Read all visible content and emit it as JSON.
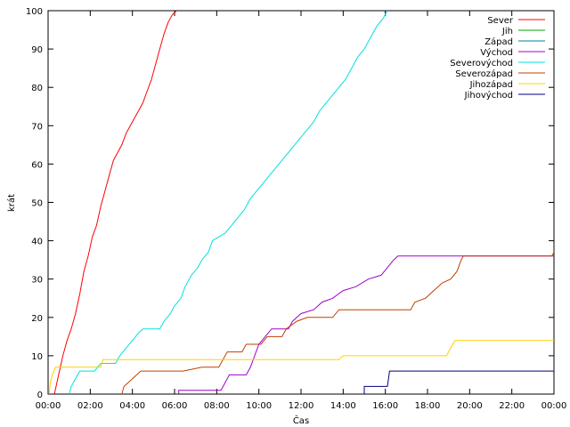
{
  "chart_data": {
    "type": "line",
    "title": "",
    "xlabel": "Čas",
    "ylabel": "krát",
    "xlim": [
      0,
      24
    ],
    "ylim": [
      0,
      100
    ],
    "x_ticks": [
      {
        "v": 0,
        "label": "00:00"
      },
      {
        "v": 2,
        "label": "02:00"
      },
      {
        "v": 4,
        "label": "04:00"
      },
      {
        "v": 6,
        "label": "06:00"
      },
      {
        "v": 8,
        "label": "08:00"
      },
      {
        "v": 10,
        "label": "10:00"
      },
      {
        "v": 12,
        "label": "12:00"
      },
      {
        "v": 14,
        "label": "14:00"
      },
      {
        "v": 16,
        "label": "16:00"
      },
      {
        "v": 18,
        "label": "18:00"
      },
      {
        "v": 20,
        "label": "20:00"
      },
      {
        "v": 22,
        "label": "22:00"
      },
      {
        "v": 24,
        "label": "00:00"
      }
    ],
    "y_ticks": [
      {
        "v": 0,
        "label": "0"
      },
      {
        "v": 10,
        "label": "10"
      },
      {
        "v": 20,
        "label": "20"
      },
      {
        "v": 30,
        "label": "30"
      },
      {
        "v": 40,
        "label": "40"
      },
      {
        "v": 50,
        "label": "50"
      },
      {
        "v": 60,
        "label": "60"
      },
      {
        "v": 70,
        "label": "70"
      },
      {
        "v": 80,
        "label": "80"
      },
      {
        "v": 90,
        "label": "90"
      },
      {
        "v": 100,
        "label": "100"
      }
    ],
    "grid": false,
    "legend_position": "top-right",
    "series": [
      {
        "name": "Sever",
        "color": "#ff0000",
        "points": [
          [
            0.3,
            0
          ],
          [
            0.5,
            5
          ],
          [
            0.7,
            10
          ],
          [
            0.9,
            14
          ],
          [
            1.1,
            17
          ],
          [
            1.3,
            21
          ],
          [
            1.5,
            26
          ],
          [
            1.7,
            32
          ],
          [
            1.9,
            36
          ],
          [
            2.1,
            41
          ],
          [
            2.3,
            44
          ],
          [
            2.5,
            49
          ],
          [
            2.7,
            53
          ],
          [
            2.9,
            57
          ],
          [
            3.1,
            61
          ],
          [
            3.3,
            63
          ],
          [
            3.5,
            65
          ],
          [
            3.7,
            68
          ],
          [
            3.9,
            70
          ],
          [
            4.1,
            72
          ],
          [
            4.3,
            74
          ],
          [
            4.5,
            76
          ],
          [
            4.7,
            79
          ],
          [
            4.9,
            82
          ],
          [
            5.1,
            86
          ],
          [
            5.3,
            90
          ],
          [
            5.5,
            94
          ],
          [
            5.7,
            97
          ],
          [
            5.9,
            99
          ],
          [
            6.1,
            100
          ]
        ]
      },
      {
        "name": "Jih",
        "color": "#00a000",
        "points": []
      },
      {
        "name": "Západ",
        "color": "#0080a0",
        "points": []
      },
      {
        "name": "Východ",
        "color": "#a000d0",
        "points": [
          [
            6.2,
            0
          ],
          [
            6.2,
            1
          ],
          [
            8.2,
            1
          ],
          [
            8.4,
            3
          ],
          [
            8.6,
            5
          ],
          [
            9.4,
            5
          ],
          [
            9.6,
            7
          ],
          [
            9.8,
            10
          ],
          [
            10.0,
            13
          ],
          [
            10.3,
            15
          ],
          [
            10.6,
            17
          ],
          [
            11.4,
            17
          ],
          [
            11.6,
            19
          ],
          [
            12.0,
            21
          ],
          [
            12.6,
            22
          ],
          [
            13.0,
            24
          ],
          [
            13.5,
            25
          ],
          [
            14.0,
            27
          ],
          [
            14.6,
            28
          ],
          [
            15.2,
            30
          ],
          [
            15.8,
            31
          ],
          [
            16.1,
            33
          ],
          [
            16.4,
            35
          ],
          [
            16.6,
            36
          ],
          [
            24,
            36
          ]
        ]
      },
      {
        "name": "Severovýchod",
        "color": "#00e0e0",
        "points": [
          [
            1.0,
            0
          ],
          [
            1.1,
            2
          ],
          [
            1.3,
            4
          ],
          [
            1.5,
            6
          ],
          [
            2.2,
            6
          ],
          [
            2.5,
            8
          ],
          [
            3.2,
            8
          ],
          [
            3.4,
            10
          ],
          [
            3.7,
            12
          ],
          [
            4.0,
            14
          ],
          [
            4.3,
            16
          ],
          [
            4.5,
            17
          ],
          [
            5.3,
            17
          ],
          [
            5.5,
            19
          ],
          [
            5.8,
            21
          ],
          [
            6.0,
            23
          ],
          [
            6.3,
            25
          ],
          [
            6.5,
            28
          ],
          [
            6.8,
            31
          ],
          [
            7.1,
            33
          ],
          [
            7.3,
            35
          ],
          [
            7.6,
            37
          ],
          [
            7.8,
            40
          ],
          [
            8.1,
            41
          ],
          [
            8.4,
            42
          ],
          [
            8.7,
            44
          ],
          [
            9.0,
            46
          ],
          [
            9.3,
            48
          ],
          [
            9.6,
            51
          ],
          [
            9.9,
            53
          ],
          [
            10.2,
            55
          ],
          [
            10.5,
            57
          ],
          [
            10.8,
            59
          ],
          [
            11.1,
            61
          ],
          [
            11.4,
            63
          ],
          [
            11.7,
            65
          ],
          [
            12.0,
            67
          ],
          [
            12.3,
            69
          ],
          [
            12.6,
            71
          ],
          [
            12.9,
            74
          ],
          [
            13.2,
            76
          ],
          [
            13.5,
            78
          ],
          [
            13.8,
            80
          ],
          [
            14.1,
            82
          ],
          [
            14.4,
            85
          ],
          [
            14.7,
            88
          ],
          [
            15.0,
            90
          ],
          [
            15.3,
            93
          ],
          [
            15.6,
            96
          ],
          [
            15.9,
            98
          ],
          [
            16.1,
            100
          ]
        ]
      },
      {
        "name": "Severozápad",
        "color": "#c04000",
        "points": [
          [
            3.5,
            0
          ],
          [
            3.6,
            2
          ],
          [
            4.0,
            4
          ],
          [
            4.4,
            6
          ],
          [
            6.4,
            6
          ],
          [
            7.3,
            7
          ],
          [
            8.1,
            7
          ],
          [
            8.3,
            9
          ],
          [
            8.5,
            11
          ],
          [
            9.2,
            11
          ],
          [
            9.4,
            13
          ],
          [
            10.1,
            13
          ],
          [
            10.4,
            15
          ],
          [
            11.1,
            15
          ],
          [
            11.3,
            17
          ],
          [
            11.8,
            19
          ],
          [
            12.3,
            20
          ],
          [
            13.5,
            20
          ],
          [
            13.8,
            22
          ],
          [
            16.0,
            22
          ],
          [
            17.2,
            22
          ],
          [
            17.4,
            24
          ],
          [
            17.9,
            25
          ],
          [
            18.3,
            27
          ],
          [
            18.7,
            29
          ],
          [
            19.1,
            30
          ],
          [
            19.4,
            32
          ],
          [
            19.6,
            35
          ],
          [
            19.7,
            36
          ],
          [
            23.9,
            36
          ],
          [
            24,
            37
          ]
        ]
      },
      {
        "name": "Jihozápad",
        "color": "#ffd000",
        "points": [
          [
            0.05,
            0
          ],
          [
            0.1,
            3
          ],
          [
            0.2,
            5
          ],
          [
            0.35,
            7
          ],
          [
            2.5,
            7
          ],
          [
            2.6,
            9
          ],
          [
            13.8,
            9
          ],
          [
            14.0,
            10
          ],
          [
            18.9,
            10
          ],
          [
            19.1,
            12
          ],
          [
            19.3,
            14
          ],
          [
            24,
            14
          ]
        ]
      },
      {
        "name": "Jihovýchod",
        "color": "#000080",
        "points": [
          [
            15.0,
            0
          ],
          [
            15.0,
            2
          ],
          [
            16.1,
            2
          ],
          [
            16.2,
            6
          ],
          [
            24,
            6
          ]
        ]
      }
    ]
  }
}
